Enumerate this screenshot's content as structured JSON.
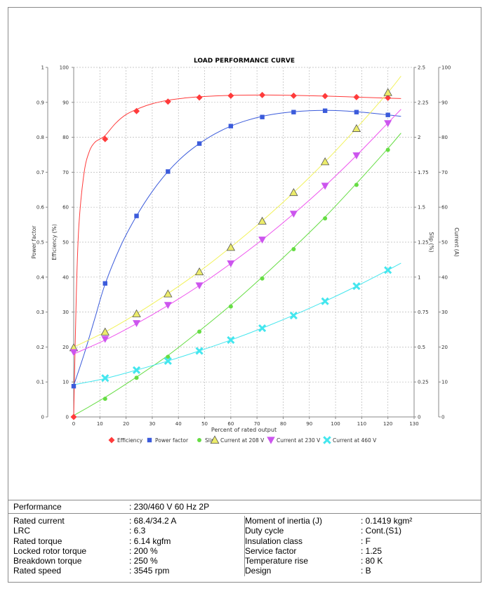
{
  "chart_data": {
    "type": "line",
    "title": "LOAD PERFORMANCE CURVE",
    "xlabel": "Percent of rated output",
    "xlim": [
      0,
      130
    ],
    "x_ticks": [
      "0",
      "10",
      "20",
      "30",
      "40",
      "50",
      "60",
      "70",
      "80",
      "90",
      "100",
      "110",
      "120",
      "130"
    ],
    "left_axes": [
      {
        "label": "Power factor",
        "lim": [
          0,
          1
        ],
        "ticks": [
          "0",
          "0.1",
          "0.2",
          "0.3",
          "0.4",
          "0.5",
          "0.6",
          "0.7",
          "0.8",
          "0.9",
          "1"
        ]
      },
      {
        "label": "Efficiency (%)",
        "lim": [
          0,
          100
        ],
        "ticks": [
          "0",
          "10",
          "20",
          "30",
          "40",
          "50",
          "60",
          "70",
          "80",
          "90",
          "100"
        ]
      }
    ],
    "right_axes": [
      {
        "label": "Slip (%)",
        "lim": [
          0,
          2.5
        ],
        "ticks": [
          "0",
          "0.25",
          "0.5",
          "0.75",
          "1",
          "1.25",
          "1.5",
          "1.75",
          "2",
          "2.25",
          "2.5"
        ]
      },
      {
        "label": "Current (A)",
        "lim": [
          0,
          100
        ],
        "ticks": [
          "0",
          "10",
          "20",
          "30",
          "40",
          "50",
          "60",
          "70",
          "80",
          "90",
          "100"
        ]
      }
    ],
    "grid": true,
    "legend_position": "bottom",
    "series": [
      {
        "name": "Efficiency",
        "axis": "efficiency",
        "color": "#ff3b3b",
        "marker": "diamond",
        "x": [
          0,
          12,
          24,
          36,
          48,
          60,
          72,
          84,
          96,
          108,
          120
        ],
        "y": [
          0,
          79.5,
          87.5,
          90.2,
          91.4,
          91.9,
          92.1,
          91.9,
          91.8,
          91.5,
          91.3
        ],
        "curve_x": [
          0,
          1,
          2,
          4,
          6,
          8,
          10,
          12,
          16,
          20,
          25,
          30,
          36,
          42,
          48,
          60,
          72,
          84,
          96,
          108,
          120,
          125
        ],
        "curve_y": [
          0,
          35,
          55,
          70,
          76,
          78.5,
          79.5,
          80.5,
          84,
          86.5,
          88.3,
          89.6,
          90.6,
          91.2,
          91.6,
          92,
          92.1,
          92,
          91.8,
          91.5,
          91.2,
          91.1
        ]
      },
      {
        "name": "Power factor",
        "axis": "power_factor",
        "color": "#3b5bdb",
        "marker": "square",
        "x": [
          0,
          12,
          24,
          36,
          48,
          60,
          72,
          84,
          96,
          108,
          120
        ],
        "y": [
          0.088,
          0.382,
          0.575,
          0.702,
          0.782,
          0.832,
          0.858,
          0.872,
          0.876,
          0.872,
          0.864
        ],
        "curve_x": [
          0,
          4,
          8,
          12,
          18,
          24,
          30,
          36,
          42,
          48,
          54,
          60,
          66,
          72,
          78,
          84,
          90,
          96,
          102,
          108,
          114,
          120,
          125
        ],
        "curve_y": [
          0.09,
          0.18,
          0.28,
          0.38,
          0.49,
          0.575,
          0.645,
          0.702,
          0.747,
          0.782,
          0.81,
          0.832,
          0.848,
          0.86,
          0.868,
          0.873,
          0.876,
          0.877,
          0.876,
          0.873,
          0.869,
          0.864,
          0.86
        ]
      },
      {
        "name": "Slip",
        "axis": "slip",
        "color": "#66dd44",
        "marker": "circle",
        "x": [
          12,
          24,
          36,
          48,
          60,
          72,
          84,
          96,
          108,
          120
        ],
        "y": [
          0.13,
          0.28,
          0.43,
          0.61,
          0.79,
          0.99,
          1.2,
          1.42,
          1.66,
          1.91
        ],
        "curve_x": [
          0,
          12,
          24,
          36,
          48,
          60,
          72,
          84,
          96,
          108,
          120,
          125
        ],
        "curve_y": [
          0.01,
          0.14,
          0.285,
          0.44,
          0.615,
          0.8,
          1.0,
          1.21,
          1.43,
          1.67,
          1.92,
          2.03
        ]
      },
      {
        "name": "Current at 208 V",
        "axis": "current",
        "color": "#f2f25a",
        "marker": "triangle-up",
        "marker_fill": "#ecec6a",
        "marker_stroke": "#555555",
        "x": [
          0,
          12,
          24,
          36,
          48,
          60,
          72,
          84,
          96,
          108,
          120
        ],
        "y": [
          19.8,
          24.3,
          29.5,
          35.2,
          41.5,
          48.5,
          56,
          64.2,
          73,
          82.5,
          92.8
        ],
        "curve_x": [
          0,
          12,
          24,
          36,
          48,
          60,
          72,
          84,
          96,
          108,
          120,
          125
        ],
        "curve_y": [
          20,
          24.3,
          29.5,
          35.3,
          41.6,
          48.6,
          56.1,
          64.2,
          73,
          82.6,
          92.8,
          97.5
        ]
      },
      {
        "name": "Current at 230 V",
        "axis": "current",
        "color": "#ee55ee",
        "marker": "triangle-down",
        "marker_fill": "#cc55ee",
        "x": [
          0,
          12,
          24,
          36,
          48,
          60,
          72,
          84,
          96,
          108,
          120
        ],
        "y": [
          18.5,
          22.3,
          26.8,
          32,
          37.6,
          43.9,
          50.7,
          58.1,
          66.1,
          74.8,
          84
        ],
        "curve_x": [
          0,
          12,
          24,
          36,
          48,
          60,
          72,
          84,
          96,
          108,
          120,
          125
        ],
        "curve_y": [
          18,
          22,
          26.7,
          31.9,
          37.6,
          43.9,
          50.7,
          58.1,
          66.1,
          74.8,
          84.1,
          88
        ]
      },
      {
        "name": "Current at 460 V",
        "axis": "current",
        "color": "#44e6ee",
        "marker": "x",
        "x": [
          12,
          24,
          36,
          48,
          60,
          72,
          84,
          96,
          108,
          120
        ],
        "y": [
          11.1,
          13.4,
          16,
          18.9,
          22,
          25.4,
          29,
          33.1,
          37.4,
          42
        ],
        "curve_x": [
          0,
          12,
          24,
          36,
          48,
          60,
          72,
          84,
          96,
          108,
          120,
          125
        ],
        "curve_y": [
          9.2,
          11,
          13.4,
          16,
          18.9,
          22,
          25.4,
          29.1,
          33.1,
          37.4,
          42,
          44
        ]
      }
    ]
  },
  "specs": {
    "performance_label": "Performance",
    "performance_value": ": 230/460 V 60 Hz 2P",
    "left": [
      {
        "label": "Rated current",
        "value": ": 68.4/34.2 A"
      },
      {
        "label": "LRC",
        "value": ": 6.3"
      },
      {
        "label": "Rated torque",
        "value": ": 6.14 kgfm"
      },
      {
        "label": "Locked rotor torque",
        "value": ": 200 %"
      },
      {
        "label": "Breakdown torque",
        "value": ": 250 %"
      },
      {
        "label": "Rated speed",
        "value": ": 3545 rpm"
      }
    ],
    "right": [
      {
        "label": "Moment of inertia (J)",
        "value": ": 0.1419 kgm²"
      },
      {
        "label": "Duty cycle",
        "value": ": Cont.(S1)"
      },
      {
        "label": "Insulation class",
        "value": ": F"
      },
      {
        "label": "Service factor",
        "value": ": 1.25"
      },
      {
        "label": "Temperature rise",
        "value": ": 80 K"
      },
      {
        "label": "Design",
        "value": ": B"
      }
    ]
  }
}
